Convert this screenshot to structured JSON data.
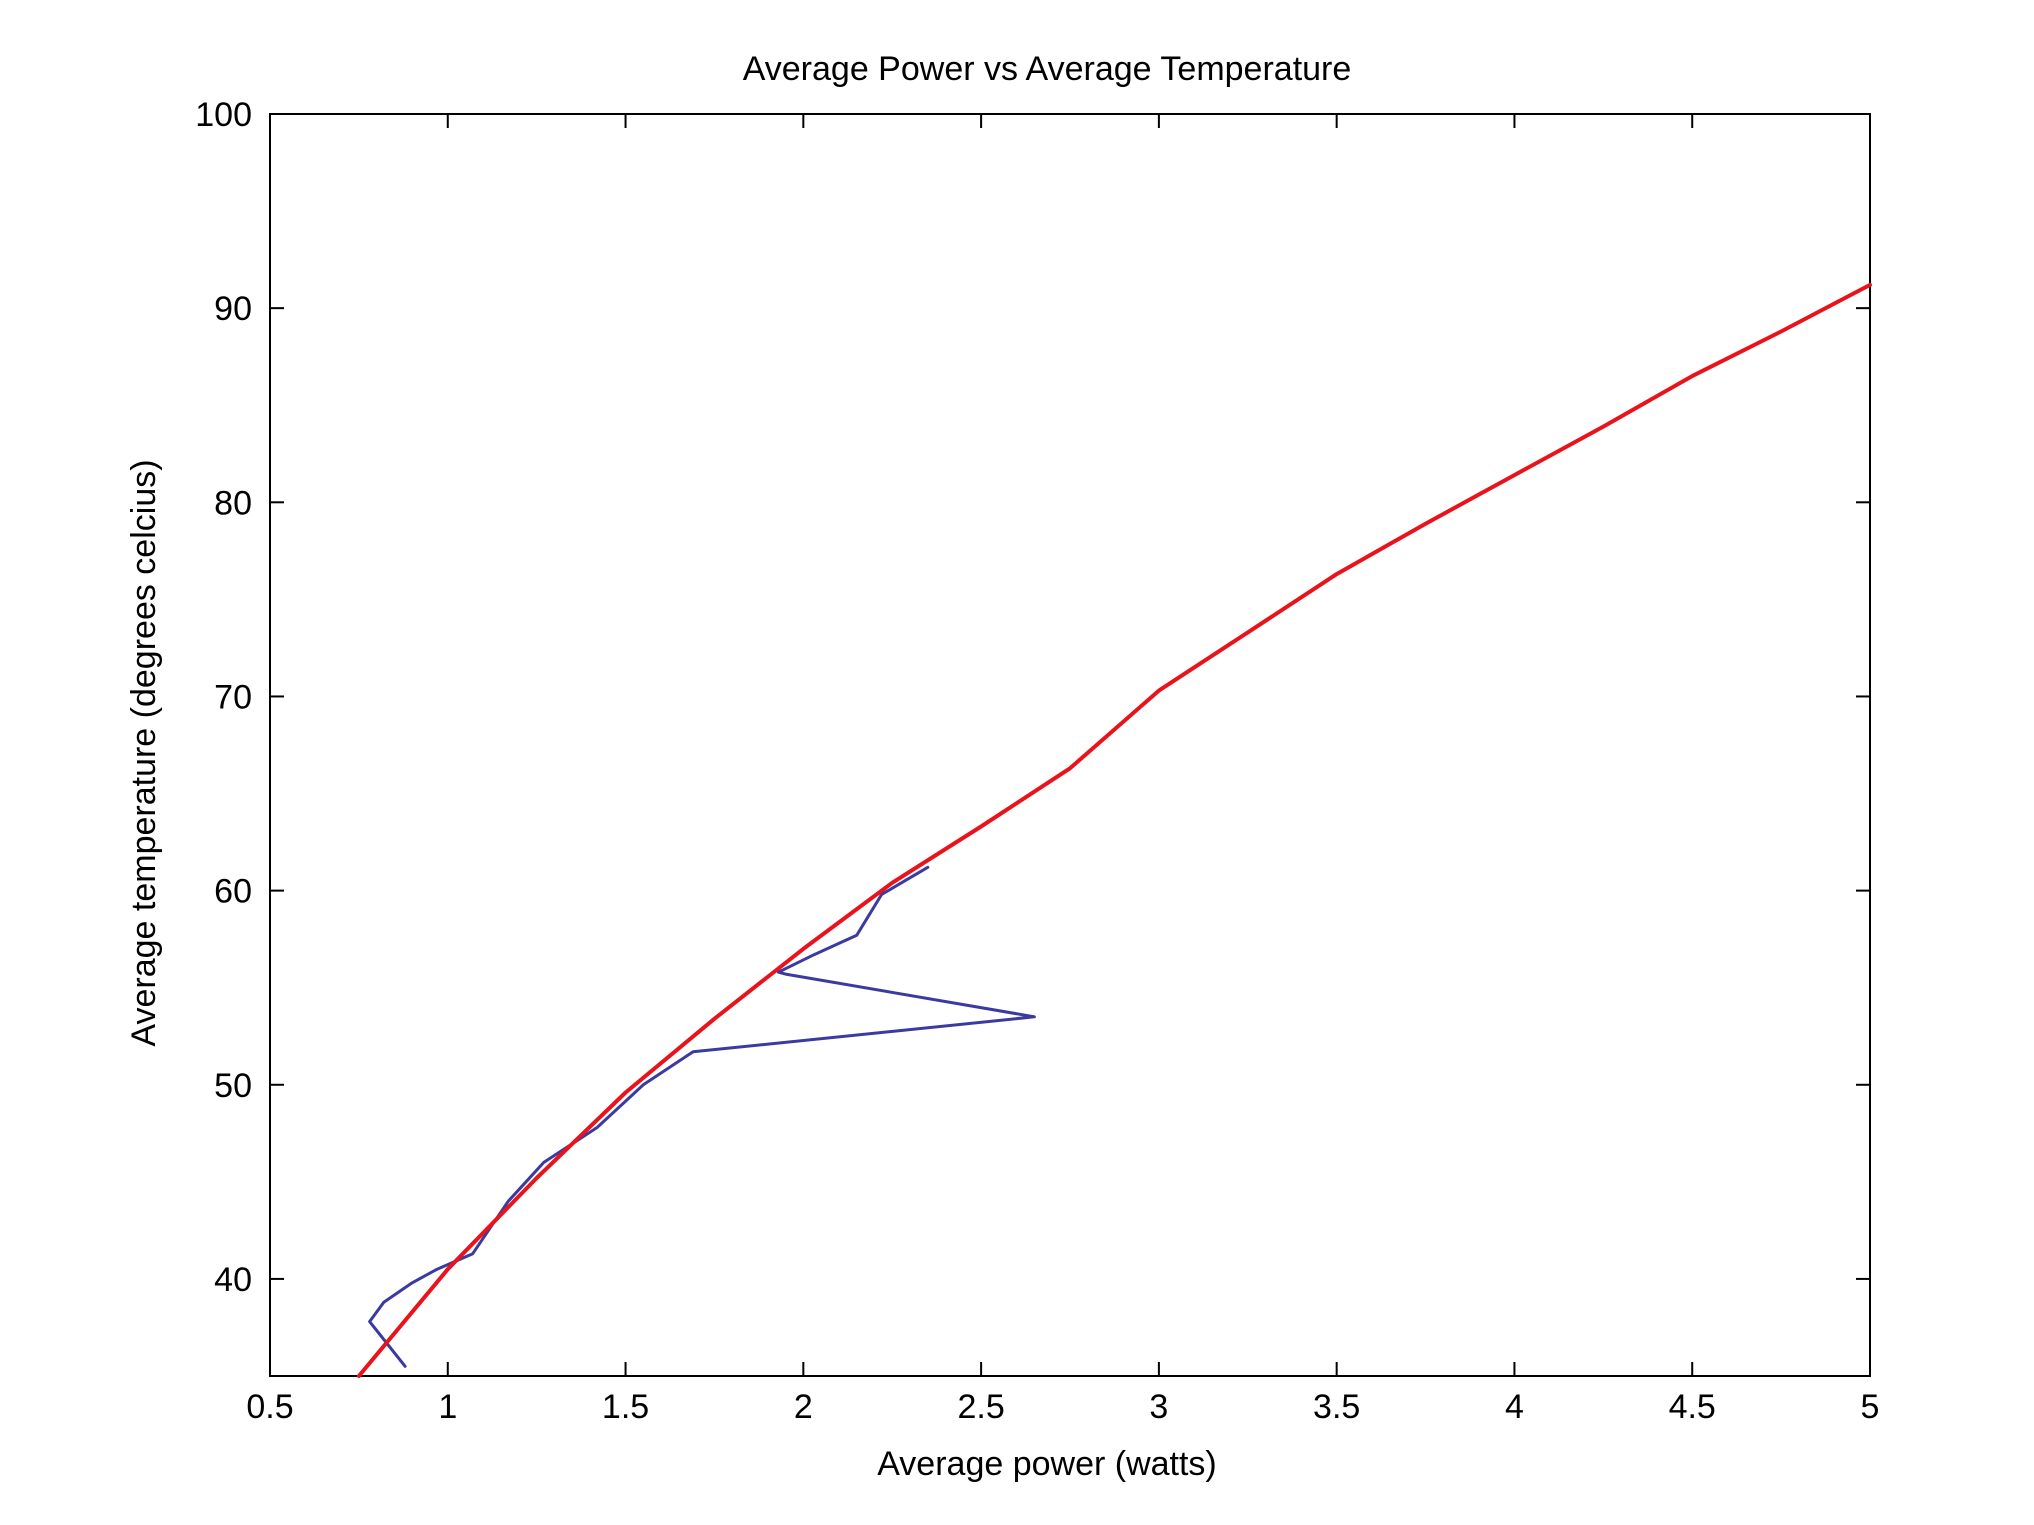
{
  "chart_data": {
    "type": "line",
    "title": "Average Power vs Average Temperature",
    "xlabel": "Average power (watts)",
    "ylabel": "Average temperature (degrees celcius)",
    "xlim": [
      0.5,
      5
    ],
    "ylim": [
      35,
      100
    ],
    "xticks": [
      0.5,
      1,
      1.5,
      2,
      2.5,
      3,
      3.5,
      4,
      4.5,
      5
    ],
    "yticks": [
      40,
      50,
      60,
      70,
      80,
      90,
      100
    ],
    "xtick_labels": [
      "0.5",
      "1",
      "1.5",
      "2",
      "2.5",
      "3",
      "3.5",
      "4",
      "4.5",
      "5"
    ],
    "ytick_labels": [
      "40",
      "50",
      "60",
      "70",
      "80",
      "90",
      "100"
    ],
    "grid": false,
    "legend": "none",
    "series": [
      {
        "color": "#3a3aa0",
        "x": [
          0.88,
          0.78,
          0.82,
          0.9,
          0.97,
          1.07,
          1.17,
          1.27,
          1.42,
          1.55,
          1.69,
          2.65,
          1.95,
          1.93,
          2.03,
          2.15,
          2.22,
          2.35
        ],
        "y": [
          35.5,
          37.8,
          38.8,
          39.8,
          40.5,
          41.3,
          44.0,
          46.0,
          47.8,
          50.0,
          51.7,
          53.5,
          55.7,
          55.8,
          56.7,
          57.7,
          59.8,
          61.2
        ]
      },
      {
        "color": "#e8131b",
        "x": [
          0.75,
          1.0,
          1.25,
          1.5,
          1.75,
          2.0,
          2.25,
          2.5,
          2.75,
          3.0,
          3.25,
          3.5,
          3.75,
          4.0,
          4.25,
          4.5,
          4.75,
          5.0
        ],
        "y": [
          35.0,
          40.5,
          45.2,
          49.6,
          53.4,
          57.0,
          60.4,
          63.3,
          66.3,
          70.3,
          73.3,
          76.3,
          78.9,
          81.4,
          83.9,
          86.5,
          88.8,
          91.2
        ]
      }
    ]
  }
}
